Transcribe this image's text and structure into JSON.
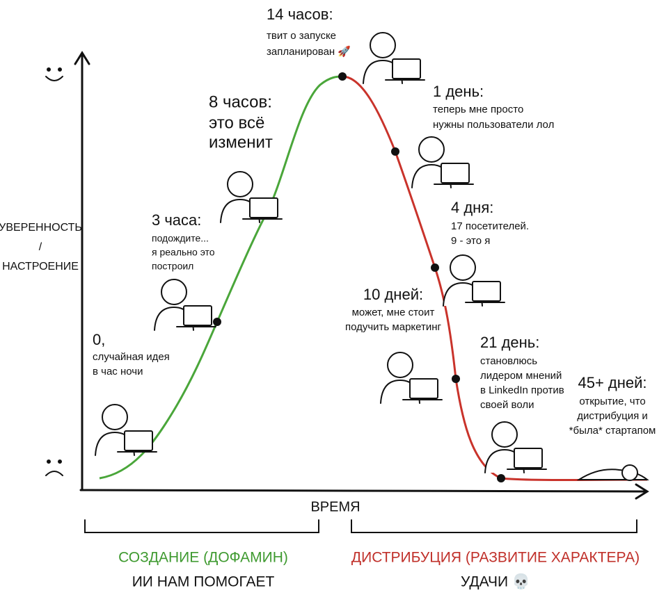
{
  "axes": {
    "y_label": [
      "УВЕРЕННОСТЬ",
      "/",
      "НАСТРОЕНИЕ"
    ],
    "x_label": "ВРЕМЯ"
  },
  "milestones": [
    {
      "title": "0,",
      "lines": [
        "случайная идея",
        "в час ночи"
      ]
    },
    {
      "title": "3 часа:",
      "lines": [
        "подождите...",
        "я реально это",
        "построил"
      ]
    },
    {
      "title": "8 часов:",
      "lines": [
        "это всё",
        "изменит"
      ]
    },
    {
      "title": "14 часов:",
      "lines": [
        "твит о запуске",
        "запланирован 🚀"
      ]
    },
    {
      "title": "1 день:",
      "lines": [
        "теперь мне просто",
        "нужны пользователи лол"
      ]
    },
    {
      "title": "4 дня:",
      "lines": [
        "17 посетителей.",
        "9 - это я"
      ]
    },
    {
      "title": "10 дней:",
      "lines": [
        "может, мне стоит",
        "подучить маркетинг"
      ]
    },
    {
      "title": "21 день:",
      "lines": [
        "становлюсь",
        "лидером мнений",
        "в LinkedIn против",
        "своей воли"
      ]
    },
    {
      "title": "45+ дней:",
      "lines": [
        "открытие, что",
        "дистрибуция и",
        "*была* стартапом"
      ]
    }
  ],
  "phases": [
    {
      "title": "СОЗДАНИЕ (ДОФАМИН)",
      "subtitle": "ИИ НАМ ПОМОГАЕТ"
    },
    {
      "title": "ДИСТРИБУЦИЯ (РАЗВИТИЕ ХАРАКТЕРА)",
      "subtitle": "УДАЧИ 💀"
    }
  ]
}
